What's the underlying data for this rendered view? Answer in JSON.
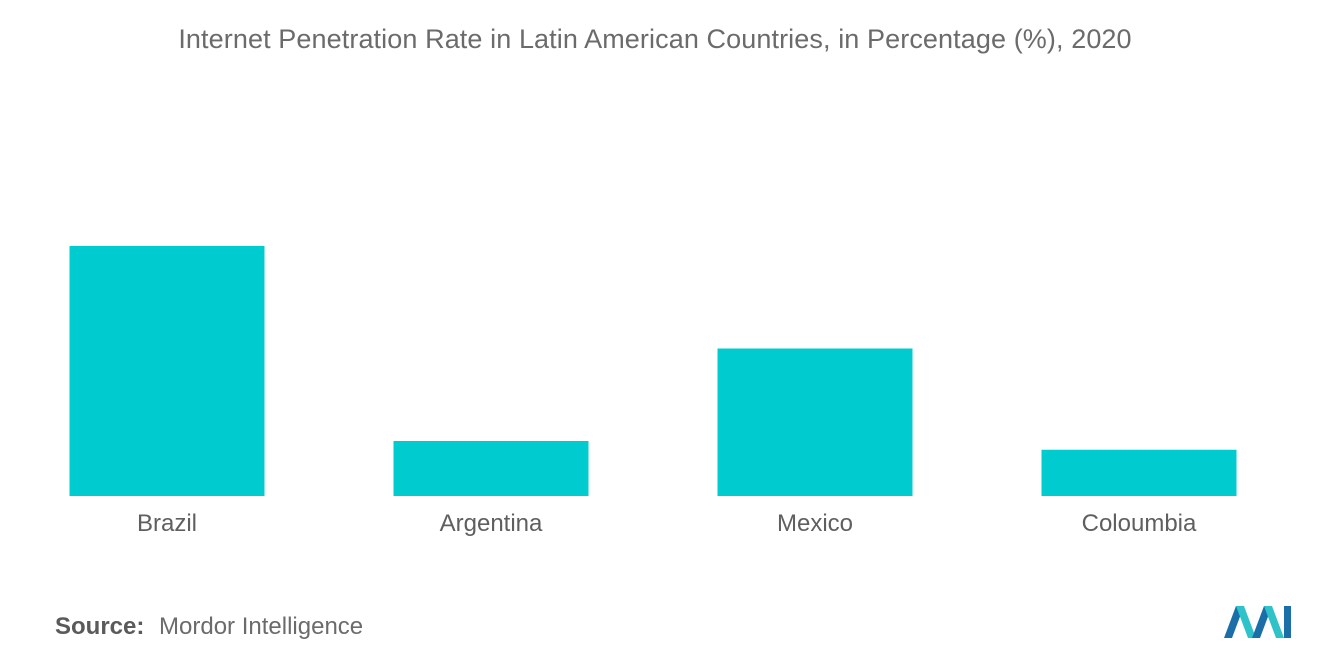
{
  "chart_data": {
    "type": "bar",
    "title": "Internet Penetration Rate in Latin American Countries, in Percentage (%), 2020",
    "categories": [
      "Brazil",
      "Argentina",
      "Mexico",
      "Coloumbia"
    ],
    "values": [
      100,
      22,
      59,
      18.5
    ],
    "xlabel": "",
    "ylabel": "",
    "ylim": [
      0,
      100
    ],
    "grid": false,
    "bar_color": "#00cccf"
  },
  "source": {
    "label": "Source:",
    "text": "Mordor Intelligence"
  },
  "logo": {
    "icon": "mordor-intelligence-logo",
    "colors": [
      "#1b6fa8",
      "#2fc3c9"
    ]
  }
}
